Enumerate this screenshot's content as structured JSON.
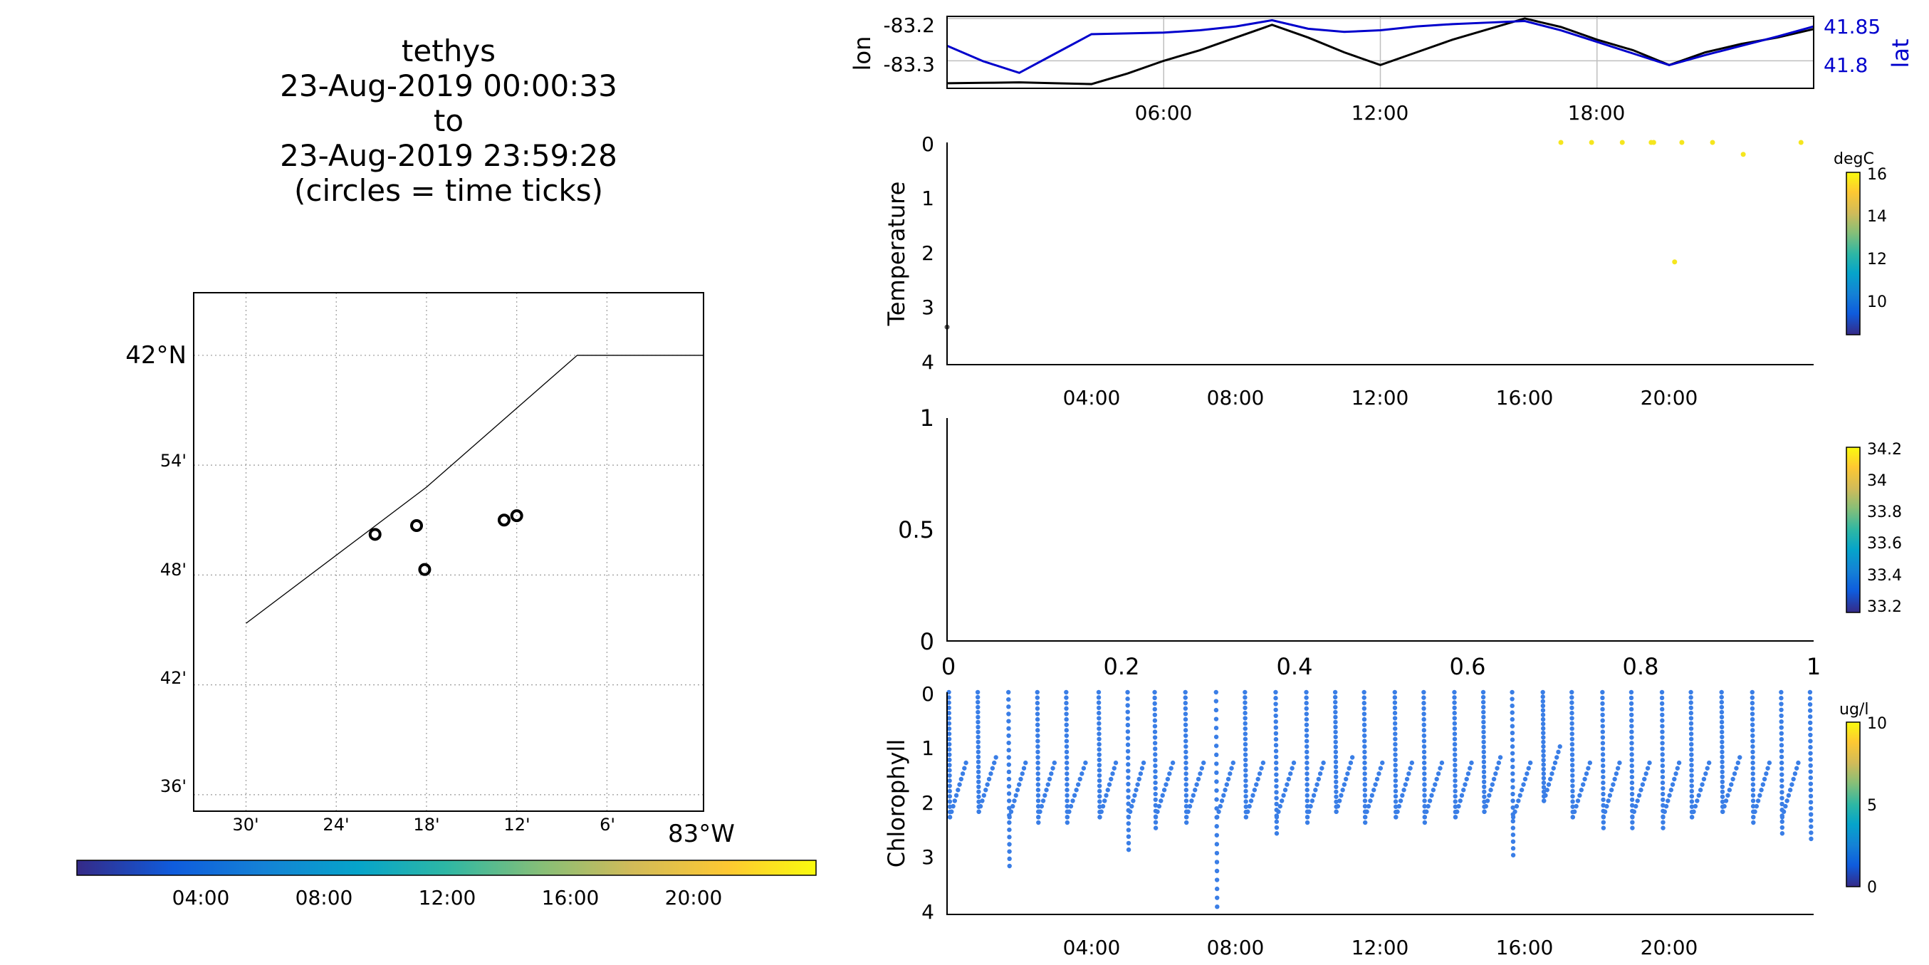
{
  "title": {
    "lines": [
      "tethys",
      "23-Aug-2019 00:00:33",
      "to",
      "23-Aug-2019 23:59:28",
      "(circles = time ticks)"
    ]
  },
  "chart_data": [
    {
      "id": "map",
      "type": "scatter",
      "lat_ticks": [
        "42°N",
        "54'",
        "48'",
        "42'",
        "36'"
      ],
      "lon_ticks": [
        "30'",
        "24'",
        "18'",
        "12'",
        "6'",
        "83°W"
      ],
      "lat_tick_values": [
        42.0,
        41.9,
        41.8,
        41.7,
        41.6
      ],
      "lon_tick_values": [
        -83.5,
        -83.4,
        -83.3,
        -83.2,
        -83.1,
        -83.0
      ],
      "xlim": [
        -83.558,
        -82.993
      ],
      "ylim": [
        41.585,
        42.057
      ],
      "coastline": [
        [
          -83.5,
          41.756
        ],
        [
          -83.3,
          41.88
        ],
        [
          -83.133,
          42.0
        ],
        [
          -82.993,
          42.0
        ]
      ],
      "time_tick_circles": [
        [
          -83.357,
          41.837
        ],
        [
          -83.311,
          41.845
        ],
        [
          -83.302,
          41.805
        ],
        [
          -83.214,
          41.85
        ],
        [
          -83.2,
          41.854
        ]
      ],
      "time_colorbar": {
        "tick_labels": [
          "04:00",
          "08:00",
          "12:00",
          "16:00",
          "20:00"
        ],
        "tick_values_hours": [
          4,
          8,
          12,
          16,
          20
        ],
        "range_hours": [
          0,
          24
        ]
      }
    },
    {
      "id": "lonlat",
      "type": "line",
      "x_tick_labels": [
        "06:00",
        "12:00",
        "18:00"
      ],
      "x_tick_values_hours": [
        6,
        12,
        18
      ],
      "xlim_hours": [
        0,
        24
      ],
      "ylabel_left": "lon",
      "ylabel_right": "lat",
      "yticks_left": [
        "-83.2",
        "-83.3"
      ],
      "yticks_left_values": [
        -83.2,
        -83.3
      ],
      "yticks_right": [
        "41.85",
        "41.8"
      ],
      "yticks_right_values": [
        41.85,
        41.8
      ],
      "ylim_left": [
        -83.365,
        -83.195
      ],
      "ylim_right": [
        41.765,
        41.858
      ],
      "series": [
        {
          "name": "lon",
          "color": "#000000",
          "x_hours": [
            0,
            1,
            2,
            3,
            4,
            5,
            6,
            7,
            8,
            9,
            10,
            11,
            12,
            13,
            14,
            15,
            16,
            17,
            18,
            19,
            20,
            21,
            22,
            23,
            24
          ],
          "values": [
            -83.353,
            -83.352,
            -83.351,
            -83.353,
            -83.355,
            -83.33,
            -83.3,
            -83.275,
            -83.245,
            -83.215,
            -83.245,
            -83.28,
            -83.31,
            -83.28,
            -83.25,
            -83.225,
            -83.2,
            -83.22,
            -83.25,
            -83.275,
            -83.31,
            -83.28,
            -83.26,
            -83.245,
            -83.225
          ]
        },
        {
          "name": "lat",
          "color": "#0000cc",
          "x_hours": [
            0,
            1,
            2,
            3,
            4,
            5,
            6,
            7,
            8,
            9,
            10,
            11,
            12,
            13,
            14,
            15,
            16,
            17,
            18,
            19,
            20,
            21,
            22,
            23,
            24
          ],
          "values": [
            41.82,
            41.8,
            41.785,
            41.81,
            41.835,
            41.836,
            41.837,
            41.84,
            41.845,
            41.853,
            41.842,
            41.838,
            41.84,
            41.845,
            41.848,
            41.85,
            41.852,
            41.84,
            41.825,
            41.81,
            41.795,
            41.808,
            41.82,
            41.832,
            41.845
          ]
        }
      ]
    },
    {
      "id": "temperature",
      "type": "scatter",
      "ylabel": "Temperature",
      "yticks": [
        "0",
        "1",
        "2",
        "3",
        "4"
      ],
      "ylim": [
        0,
        4
      ],
      "x_tick_labels": [
        "04:00",
        "08:00",
        "12:00",
        "16:00",
        "20:00"
      ],
      "x_tick_values_hours": [
        4,
        8,
        12,
        16,
        20
      ],
      "xlim_hours": [
        0,
        24
      ],
      "colorbar": {
        "unit": "degC",
        "ticks": [
          "16",
          "14",
          "12",
          "10"
        ],
        "tick_values": [
          16,
          14,
          12,
          10
        ],
        "range": [
          8.6,
          16.2
        ]
      },
      "points": [
        [
          17.0,
          0.0
        ],
        [
          17.85,
          0.0
        ],
        [
          18.7,
          0.0
        ],
        [
          19.5,
          0.0
        ],
        [
          19.57,
          0.0
        ],
        [
          20.35,
          0.0
        ],
        [
          21.2,
          0.0
        ],
        [
          22.05,
          0.22
        ],
        [
          23.65,
          0.0
        ],
        [
          20.15,
          2.2
        ],
        [
          0.0,
          3.4
        ]
      ],
      "point_color": "#f5e61e"
    },
    {
      "id": "empty",
      "type": "scatter",
      "yticks": [
        "1",
        "0.5",
        "0"
      ],
      "ylim": [
        0,
        1
      ],
      "x_tick_labels": [
        "0",
        "0.2",
        "0.4",
        "0.6",
        "0.8",
        "1"
      ],
      "xlim": [
        0,
        1
      ],
      "colorbar": {
        "ticks": [
          "34.2",
          "34",
          "33.8",
          "33.6",
          "33.4",
          "33.2"
        ],
        "tick_values": [
          34.2,
          34.0,
          33.8,
          33.6,
          33.4,
          33.2
        ],
        "range": [
          33.15,
          34.22
        ]
      },
      "points": []
    },
    {
      "id": "chlorophyll",
      "type": "scatter",
      "ylabel": "Chlorophyll",
      "yticks": [
        "0",
        "1",
        "2",
        "3",
        "4"
      ],
      "ylim": [
        0,
        4
      ],
      "x_tick_labels": [
        "04:00",
        "08:00",
        "12:00",
        "16:00",
        "20:00"
      ],
      "x_tick_values_hours": [
        4,
        8,
        12,
        16,
        20
      ],
      "xlim_hours": [
        0,
        24
      ],
      "colorbar": {
        "unit": "ug/l",
        "ticks": [
          "10",
          "5",
          "0"
        ],
        "tick_values": [
          10,
          5,
          0
        ],
        "range": [
          0,
          10
        ]
      },
      "point_color": "#3a7ee6",
      "profile_start_hours": [
        0.05,
        0.85,
        1.7,
        2.5,
        3.3,
        4.2,
        5.0,
        5.75,
        6.6,
        7.45,
        8.25,
        9.1,
        9.95,
        10.75,
        11.55,
        12.4,
        13.2,
        14.05,
        14.85,
        15.65,
        16.5,
        17.3,
        18.15,
        18.95,
        19.8,
        20.6,
        21.45,
        22.3,
        23.1,
        23.9
      ],
      "profile_max_depth": [
        2.3,
        2.2,
        3.2,
        2.4,
        2.4,
        2.3,
        2.9,
        2.5,
        2.4,
        3.95,
        2.3,
        2.6,
        2.4,
        2.2,
        2.4,
        2.3,
        2.4,
        2.3,
        2.2,
        3.0,
        2.0,
        2.3,
        2.5,
        2.5,
        2.5,
        2.3,
        2.2,
        2.4,
        2.6,
        2.7
      ]
    }
  ]
}
